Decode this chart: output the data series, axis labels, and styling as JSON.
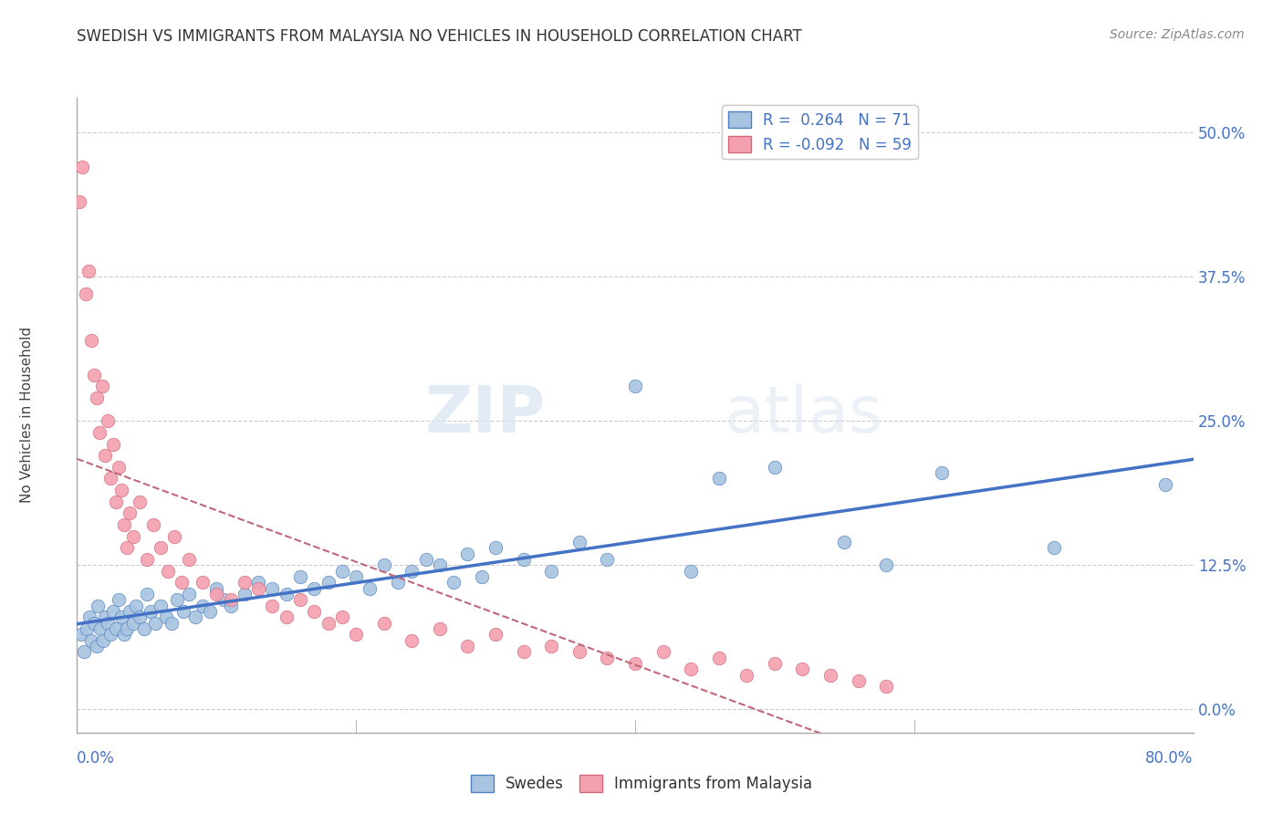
{
  "title": "SWEDISH VS IMMIGRANTS FROM MALAYSIA NO VEHICLES IN HOUSEHOLD CORRELATION CHART",
  "source": "Source: ZipAtlas.com",
  "ylabel": "No Vehicles in Household",
  "ytick_vals": [
    0.0,
    12.5,
    25.0,
    37.5,
    50.0
  ],
  "xmin": 0.0,
  "xmax": 80.0,
  "ymin": -2.0,
  "ymax": 53.0,
  "blue_color": "#a8c4e0",
  "pink_color": "#f4a0b0",
  "blue_edge": "#5080c0",
  "pink_edge": "#d06878",
  "blue_line_color": "#4472c4",
  "pink_line_color": "#c06878",
  "swedes_x": [
    0.3,
    0.5,
    0.7,
    0.9,
    1.0,
    1.2,
    1.4,
    1.5,
    1.7,
    1.9,
    2.0,
    2.2,
    2.4,
    2.6,
    2.8,
    3.0,
    3.2,
    3.4,
    3.6,
    3.8,
    4.0,
    4.2,
    4.5,
    4.8,
    5.0,
    5.3,
    5.6,
    6.0,
    6.4,
    6.8,
    7.2,
    7.6,
    8.0,
    8.5,
    9.0,
    9.5,
    10.0,
    10.5,
    11.0,
    12.0,
    13.0,
    14.0,
    15.0,
    16.0,
    17.0,
    18.0,
    19.0,
    20.0,
    21.0,
    22.0,
    23.0,
    24.0,
    25.0,
    26.0,
    27.0,
    28.0,
    29.0,
    30.0,
    32.0,
    34.0,
    36.0,
    38.0,
    40.0,
    44.0,
    46.0,
    50.0,
    55.0,
    58.0,
    62.0,
    70.0,
    78.0
  ],
  "swedes_y": [
    6.5,
    5.0,
    7.0,
    8.0,
    6.0,
    7.5,
    5.5,
    9.0,
    7.0,
    6.0,
    8.0,
    7.5,
    6.5,
    8.5,
    7.0,
    9.5,
    8.0,
    6.5,
    7.0,
    8.5,
    7.5,
    9.0,
    8.0,
    7.0,
    10.0,
    8.5,
    7.5,
    9.0,
    8.0,
    7.5,
    9.5,
    8.5,
    10.0,
    8.0,
    9.0,
    8.5,
    10.5,
    9.5,
    9.0,
    10.0,
    11.0,
    10.5,
    10.0,
    11.5,
    10.5,
    11.0,
    12.0,
    11.5,
    10.5,
    12.5,
    11.0,
    12.0,
    13.0,
    12.5,
    11.0,
    13.5,
    11.5,
    14.0,
    13.0,
    12.0,
    14.5,
    13.0,
    28.0,
    12.0,
    20.0,
    21.0,
    14.5,
    12.5,
    20.5,
    14.0,
    19.5
  ],
  "malaysia_x": [
    0.2,
    0.4,
    0.6,
    0.8,
    1.0,
    1.2,
    1.4,
    1.6,
    1.8,
    2.0,
    2.2,
    2.4,
    2.6,
    2.8,
    3.0,
    3.2,
    3.4,
    3.6,
    3.8,
    4.0,
    4.5,
    5.0,
    5.5,
    6.0,
    6.5,
    7.0,
    7.5,
    8.0,
    9.0,
    10.0,
    11.0,
    12.0,
    13.0,
    14.0,
    15.0,
    16.0,
    17.0,
    18.0,
    19.0,
    20.0,
    22.0,
    24.0,
    26.0,
    28.0,
    30.0,
    32.0,
    34.0,
    36.0,
    38.0,
    40.0,
    42.0,
    44.0,
    46.0,
    48.0,
    50.0,
    52.0,
    54.0,
    56.0,
    58.0
  ],
  "malaysia_y": [
    44.0,
    47.0,
    36.0,
    38.0,
    32.0,
    29.0,
    27.0,
    24.0,
    28.0,
    22.0,
    25.0,
    20.0,
    23.0,
    18.0,
    21.0,
    19.0,
    16.0,
    14.0,
    17.0,
    15.0,
    18.0,
    13.0,
    16.0,
    14.0,
    12.0,
    15.0,
    11.0,
    13.0,
    11.0,
    10.0,
    9.5,
    11.0,
    10.5,
    9.0,
    8.0,
    9.5,
    8.5,
    7.5,
    8.0,
    6.5,
    7.5,
    6.0,
    7.0,
    5.5,
    6.5,
    5.0,
    5.5,
    5.0,
    4.5,
    4.0,
    5.0,
    3.5,
    4.5,
    3.0,
    4.0,
    3.5,
    3.0,
    2.5,
    2.0
  ]
}
